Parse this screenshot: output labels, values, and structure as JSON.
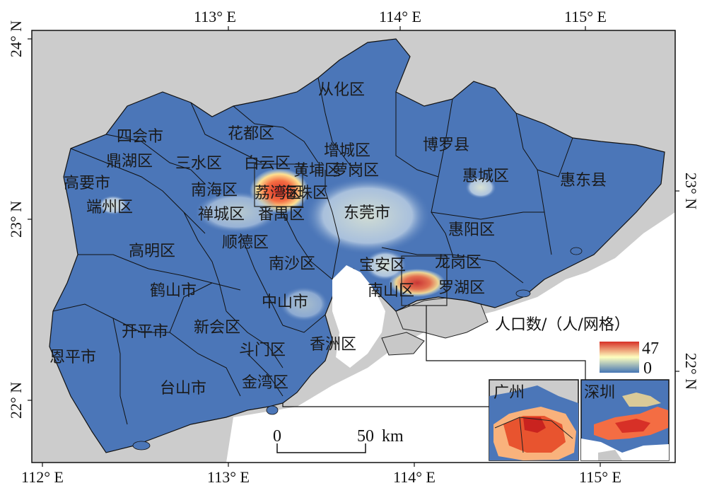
{
  "map": {
    "lon_labels": [
      "112° E",
      "113° E",
      "114° E",
      "115° E"
    ],
    "lat_labels": [
      "22° N",
      "23° N",
      "24° N"
    ],
    "districts": [
      {
        "id": "conghua",
        "name": "从化区"
      },
      {
        "id": "sihui",
        "name": "四会市"
      },
      {
        "id": "huadu",
        "name": "花都区"
      },
      {
        "id": "zengcheng",
        "name": "增城区"
      },
      {
        "id": "boluo",
        "name": "博罗县"
      },
      {
        "id": "dinghu",
        "name": "鼎湖区"
      },
      {
        "id": "sanshui",
        "name": "三水区"
      },
      {
        "id": "baiyun",
        "name": "白云区"
      },
      {
        "id": "huangpu",
        "name": "黄埔区"
      },
      {
        "id": "luogang",
        "name": "萝岗区"
      },
      {
        "id": "gaoyao",
        "name": "高要市"
      },
      {
        "id": "huicheng",
        "name": "惠城区"
      },
      {
        "id": "huidong",
        "name": "惠东县"
      },
      {
        "id": "nanhai",
        "name": "南海区"
      },
      {
        "id": "liwan",
        "name": "荔湾区"
      },
      {
        "id": "haizhu",
        "name": "海珠区"
      },
      {
        "id": "duanzhou",
        "name": "端州区"
      },
      {
        "id": "chancheng",
        "name": "禅城区"
      },
      {
        "id": "panyu",
        "name": "番禺区"
      },
      {
        "id": "dongguan",
        "name": "东莞市"
      },
      {
        "id": "huiyang",
        "name": "惠阳区"
      },
      {
        "id": "gaoming",
        "name": "高明区"
      },
      {
        "id": "shunde",
        "name": "顺德区"
      },
      {
        "id": "nansha",
        "name": "南沙区"
      },
      {
        "id": "baoan",
        "name": "宝安区"
      },
      {
        "id": "longgang",
        "name": "龙岗区"
      },
      {
        "id": "heshan",
        "name": "鹤山市"
      },
      {
        "id": "nanshan",
        "name": "南山区"
      },
      {
        "id": "luohu",
        "name": "罗湖区"
      },
      {
        "id": "zhongshan",
        "name": "中山市"
      },
      {
        "id": "kaiping",
        "name": "开平市"
      },
      {
        "id": "xinhui",
        "name": "新会区"
      },
      {
        "id": "xiangzhou",
        "name": "香洲区"
      },
      {
        "id": "enping",
        "name": "恩平市"
      },
      {
        "id": "doumen",
        "name": "斗门区"
      },
      {
        "id": "taishan",
        "name": "台山市"
      },
      {
        "id": "jinwan",
        "name": "金湾区"
      }
    ]
  },
  "legend": {
    "title": "人口数/（人/网格）",
    "max": "47",
    "min": "0",
    "max_value": 47,
    "min_value": 0
  },
  "scale_bar": {
    "start": "0",
    "end": "50",
    "unit": "km"
  },
  "insets": [
    {
      "id": "guangzhou",
      "title": "广州"
    },
    {
      "id": "shenzhen",
      "title": "深圳"
    }
  ],
  "colors": {
    "land_fill": "#4b76b8",
    "outside_land": "#cccccc",
    "sea": "#ffffff",
    "ramp_low": "#4575b4",
    "ramp_mid": "#ffffbf",
    "ramp_high": "#d73027"
  }
}
